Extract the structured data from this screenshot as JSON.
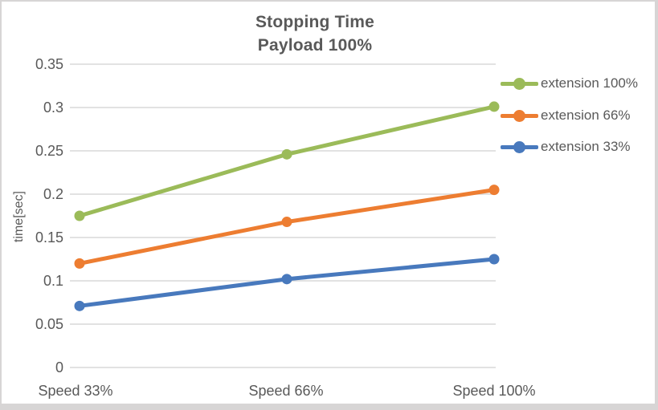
{
  "chart_data": {
    "type": "line",
    "title": "Stopping Time",
    "subtitle": "Payload 100%",
    "categories": [
      "Speed 33%",
      "Speed 66%",
      "Speed 100%"
    ],
    "series": [
      {
        "name": "extension 100%",
        "color": "#9bbb59",
        "values": [
          0.175,
          0.246,
          0.301
        ]
      },
      {
        "name": "extension 66%",
        "color": "#ed7d31",
        "values": [
          0.12,
          0.168,
          0.205
        ]
      },
      {
        "name": "extension 33%",
        "color": "#4879bd",
        "values": [
          0.071,
          0.102,
          0.125
        ]
      }
    ],
    "xlabel": "",
    "ylabel": "time[sec]",
    "ylim": [
      0,
      0.35
    ],
    "yticks": [
      0,
      0.05,
      0.1,
      0.15,
      0.2,
      0.25,
      0.3,
      0.35
    ],
    "ytick_labels": [
      "0",
      "0.05",
      "0.1",
      "0.15",
      "0.2",
      "0.25",
      "0.3",
      "0.35"
    ],
    "grid": "horizontal",
    "legend_position": "right",
    "marker": "circle"
  },
  "colors": {
    "text": "#595959",
    "grid": "#d9d9d9",
    "frame_border": "#d7d5d5",
    "background": "#ffffff"
  }
}
